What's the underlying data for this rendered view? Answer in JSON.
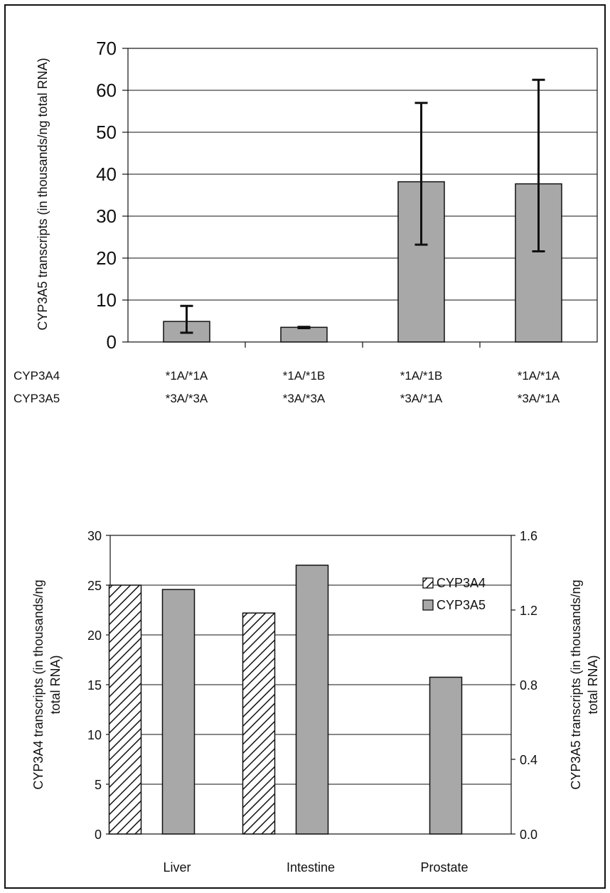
{
  "chart_data": [
    {
      "type": "bar",
      "title": "",
      "ylabel": "CYP3A5 transcripts (in thousands/ng total RNA)",
      "ylim": [
        0,
        70
      ],
      "y_ticks": [
        "0",
        "10",
        "20",
        "30",
        "40",
        "50",
        "60",
        "70"
      ],
      "row_labels": [
        "CYP3A4",
        "CYP3A5"
      ],
      "categories": [
        {
          "cyp3a4": "*1A/*1A",
          "cyp3a5": "*3A/*3A"
        },
        {
          "cyp3a4": "*1A/*1B",
          "cyp3a5": "*3A/*3A"
        },
        {
          "cyp3a4": "*1A/*1B",
          "cyp3a5": "*3A/*1A"
        },
        {
          "cyp3a4": "*1A/*1A",
          "cyp3a5": "*3A/*1A"
        }
      ],
      "values": [
        4.9,
        3.5,
        38.2,
        37.7
      ],
      "error_low": [
        2.2,
        3.3,
        23.2,
        21.6
      ],
      "error_high": [
        8.6,
        3.6,
        57.0,
        62.5
      ],
      "grid": true,
      "bar_color": "#a8a8a8"
    },
    {
      "type": "bar",
      "title": "",
      "categories": [
        "Liver",
        "Intestine",
        "Prostate"
      ],
      "ylabel_left": "CYP3A4 transcripts (in thousands/ng total RNA)",
      "ylabel_right": "CYP3A5 transcripts (in thousands/ng total RNA)",
      "ylim_left": [
        0,
        30
      ],
      "ylim_right": [
        0,
        1.6
      ],
      "y_ticks_left": [
        "0",
        "5",
        "10",
        "15",
        "20",
        "25",
        "30"
      ],
      "y_ticks_right": [
        "0.0",
        "0.4",
        "0.8",
        "1.2",
        "1.6"
      ],
      "series": [
        {
          "name": "CYP3A4",
          "axis": "left",
          "pattern": "hatched",
          "values": [
            25.0,
            22.2,
            null
          ]
        },
        {
          "name": "CYP3A5",
          "axis": "right",
          "pattern": "solid",
          "values": [
            1.31,
            1.44,
            0.84
          ]
        }
      ],
      "legend_position": "top-right",
      "grid": true,
      "bar_color": "#a8a8a8"
    }
  ]
}
